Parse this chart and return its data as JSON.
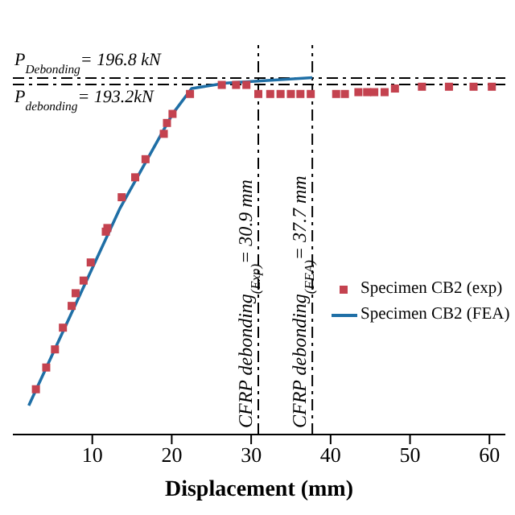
{
  "chart_data": {
    "type": "scatter",
    "xlabel": "Displacement (mm)",
    "xlim": [
      0,
      62
    ],
    "xticks": [
      10,
      20,
      30,
      40,
      50,
      60
    ],
    "ylim": [
      0,
      215
    ],
    "tick_labels": "x",
    "grid": false,
    "legend": "right",
    "marker": "square",
    "series": [
      {
        "name": "Specimen CB2 (exp)",
        "color": "#c4424f",
        "x": [
          2.9,
          4.2,
          5.3,
          6.3,
          7.4,
          7.9,
          8.9,
          9.8,
          11.7,
          11.9,
          13.7,
          15.4,
          16.7,
          19.0,
          19.4,
          20.1,
          22.3,
          26.3,
          28.1,
          29.4,
          30.9,
          32.4,
          33.7,
          35.0,
          36.2,
          37.5,
          40.7,
          41.8,
          43.5,
          44.6,
          45.5,
          46.8,
          48.1,
          51.5,
          54.9,
          58.0,
          60.3
        ],
        "values": [
          25,
          37,
          47,
          59,
          71,
          78,
          85,
          95,
          112,
          114,
          131,
          142,
          152,
          166,
          172,
          177,
          188,
          193,
          193,
          193,
          188,
          188,
          188,
          188,
          188,
          188,
          188,
          188,
          189,
          189,
          189,
          189,
          191,
          192,
          192,
          192,
          192
        ]
      },
      {
        "name": "Specimen CB2 (FEA)",
        "type": "line",
        "marker": "none",
        "color": "#1f6fa6",
        "x": [
          2.0,
          13.5,
          20.1,
          22.5,
          26.8,
          37.7
        ],
        "values": [
          16,
          125,
          177,
          191,
          194,
          197
        ]
      }
    ],
    "ref_lines": [
      {
        "axis": "y",
        "value": 196.8,
        "label": "P$_{Debonding}$= 196.8 kN",
        "line_style": "dashdot",
        "color": "#000000"
      },
      {
        "axis": "y",
        "value": 193.2,
        "label": "P$_{debonding}$= 193.2kN",
        "line_style": "dashdot",
        "color": "#000000"
      },
      {
        "axis": "x",
        "value": 30.9,
        "label": "CFRP debonding$_{(Exp)}$= 30.9 mm",
        "line_style": "dashdot",
        "color": "#000000"
      },
      {
        "axis": "x",
        "value": 37.7,
        "label": "CFRP debonding$_{(FEA)}$= 37.7 mm",
        "line_style": "dashdot",
        "color": "#000000"
      }
    ]
  }
}
